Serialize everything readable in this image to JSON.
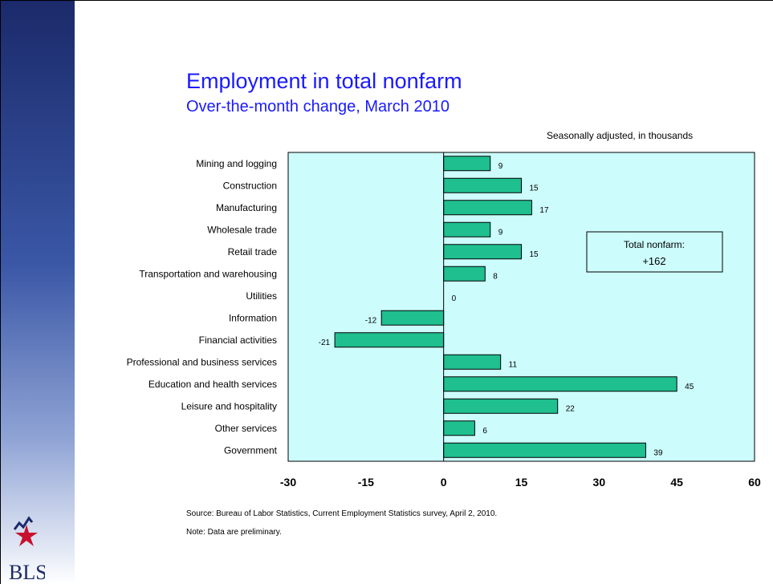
{
  "header": {
    "title": "Employment in total nonfarm",
    "subtitle": "Over-the-month change, March 2010",
    "units": "Seasonally adjusted, in thousands"
  },
  "chart_data": {
    "type": "bar",
    "orientation": "horizontal",
    "categories": [
      "Mining and logging",
      "Construction",
      "Manufacturing",
      "Wholesale trade",
      "Retail trade",
      "Transportation and warehousing",
      "Utilities",
      "Information",
      "Financial activities",
      "Professional and business services",
      "Education and health services",
      "Leisure and hospitality",
      "Other services",
      "Government"
    ],
    "values": [
      9,
      15,
      17,
      9,
      15,
      8,
      0,
      -12,
      -21,
      11,
      45,
      22,
      6,
      39
    ],
    "xlim": [
      -30,
      60
    ],
    "xticks": [
      -30,
      -15,
      0,
      15,
      30,
      45,
      60
    ],
    "grid": false,
    "annotation": {
      "label": "Total nonfarm:",
      "value": "+162"
    },
    "colors": {
      "bar": "#1fbf8f",
      "plot_background": "#ccfcfc",
      "text": "#000000"
    }
  },
  "footer": {
    "source": "Source:  Bureau of Labor Statistics, Current Employment Statistics survey, April 2, 2010.",
    "note": "Note: Data are preliminary.",
    "logo_text": "BLS"
  },
  "colors": {
    "title": "#1a1aff",
    "sidebar_dark": "#1b2a6a"
  }
}
